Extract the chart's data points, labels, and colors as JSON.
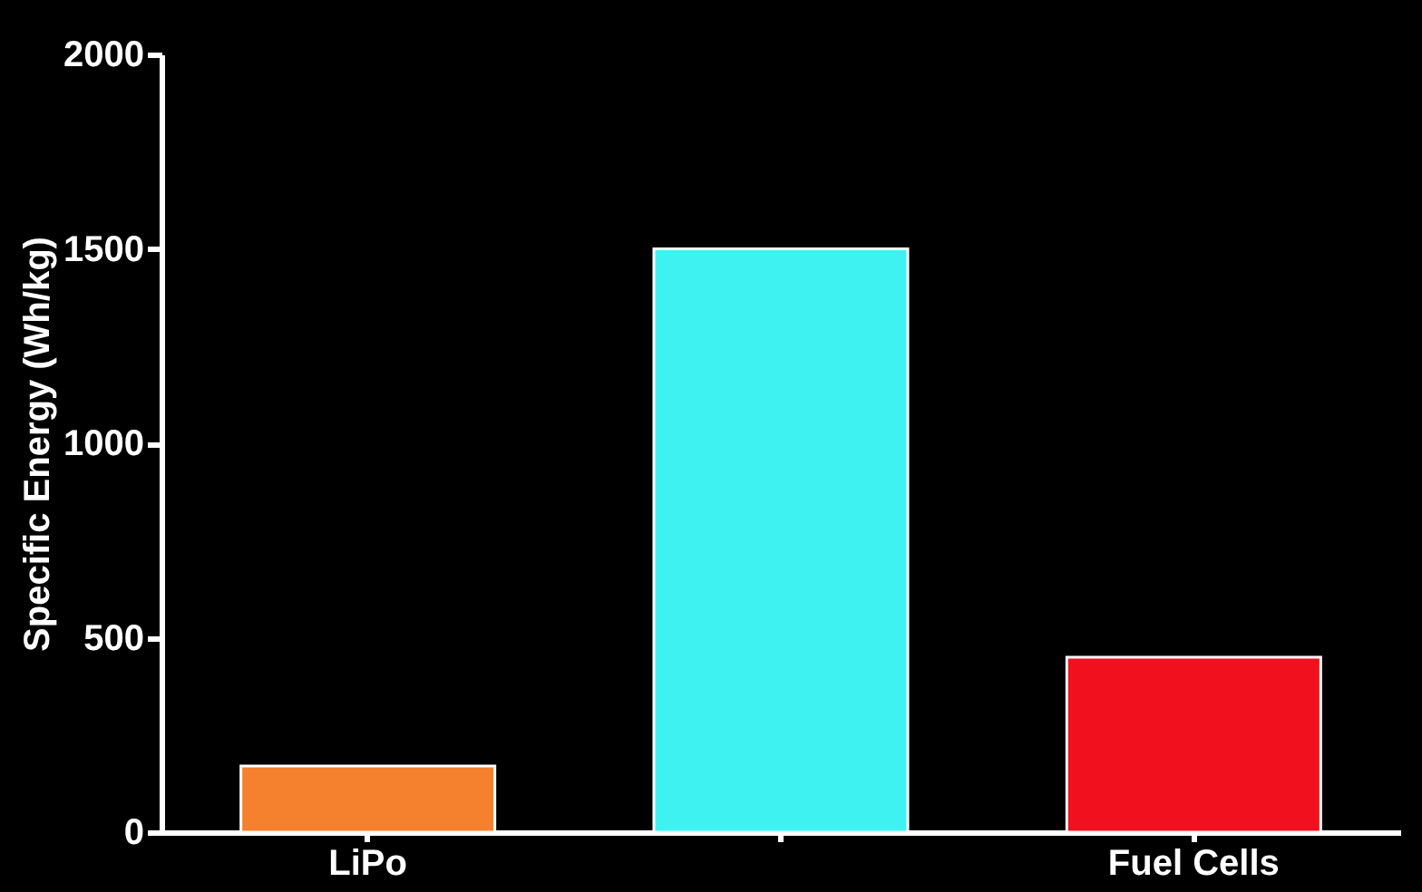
{
  "chart_data": {
    "type": "bar",
    "ylabel": "Specific Energy (Wh/kg)",
    "categories": [
      "LiPo",
      null,
      "Fuel Cells"
    ],
    "values": [
      170,
      1500,
      450
    ],
    "colors": [
      "#f5802e",
      "#3ff2f2",
      "#f0101e"
    ],
    "ylim": [
      0,
      2000
    ],
    "yticks": [
      0,
      500,
      1000,
      1500,
      2000
    ],
    "grid": false,
    "legend": false
  }
}
